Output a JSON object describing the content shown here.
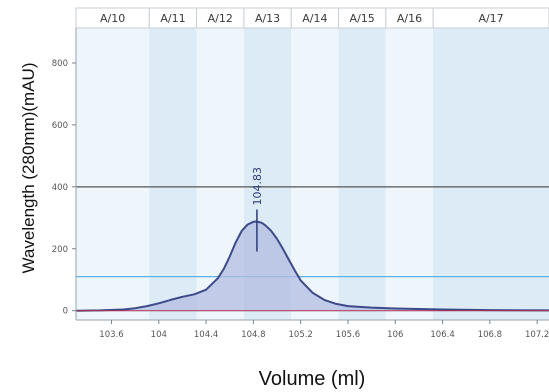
{
  "chart_data": {
    "type": "line",
    "xlabel": "Volume (ml)",
    "ylabel": "Wavelength (280mm)(mAU)",
    "xlim": [
      103.3,
      107.3
    ],
    "ylim": [
      -30,
      900
    ],
    "x_ticks": [
      103.6,
      104,
      104.4,
      104.8,
      105.2,
      105.6,
      106,
      106.4,
      106.8,
      107.2
    ],
    "x_tick_labels": [
      "103.6",
      "104",
      "104.4",
      "104.8",
      "105.2",
      "105.6",
      "106",
      "106.4",
      "106.8",
      "107.2"
    ],
    "y_ticks": [
      0,
      200,
      400,
      600,
      800
    ],
    "y_tick_labels": [
      "0",
      "200",
      "400",
      "600",
      "800"
    ],
    "fractions": [
      {
        "label": "A/10",
        "start": 103.3,
        "end": 103.92
      },
      {
        "label": "A/11",
        "start": 103.92,
        "end": 104.32
      },
      {
        "label": "A/12",
        "start": 104.32,
        "end": 104.72
      },
      {
        "label": "A/13",
        "start": 104.72,
        "end": 105.12
      },
      {
        "label": "A/14",
        "start": 105.12,
        "end": 105.52
      },
      {
        "label": "A/15",
        "start": 105.52,
        "end": 105.92
      },
      {
        "label": "A/16",
        "start": 105.92,
        "end": 106.32
      },
      {
        "label": "A/17",
        "start": 106.32,
        "end": 107.3
      }
    ],
    "reference_lines": [
      {
        "y": 400,
        "color": "#555555"
      },
      {
        "y": 110,
        "color": "#5ab4e8"
      }
    ],
    "series": [
      {
        "color": "#3d4a8a",
        "fill": "#b3bce0",
        "x": [
          103.3,
          103.5,
          103.7,
          103.8,
          103.9,
          104.0,
          104.1,
          104.2,
          104.3,
          104.4,
          104.5,
          104.55,
          104.6,
          104.65,
          104.7,
          104.75,
          104.8,
          104.83,
          104.87,
          104.9,
          104.95,
          105.0,
          105.05,
          105.1,
          105.15,
          105.2,
          105.3,
          105.4,
          105.5,
          105.6,
          105.8,
          106.0,
          106.4,
          106.8,
          107.3
        ],
        "y": [
          0,
          1,
          4,
          8,
          15,
          24,
          35,
          45,
          53,
          68,
          105,
          135,
          175,
          220,
          257,
          278,
          287,
          288,
          284,
          276,
          258,
          232,
          200,
          165,
          130,
          98,
          58,
          35,
          22,
          15,
          10,
          7,
          4,
          2,
          1
        ]
      }
    ],
    "peak_annotation": {
      "x": 104.83,
      "y": 288,
      "label": "104.83"
    }
  }
}
